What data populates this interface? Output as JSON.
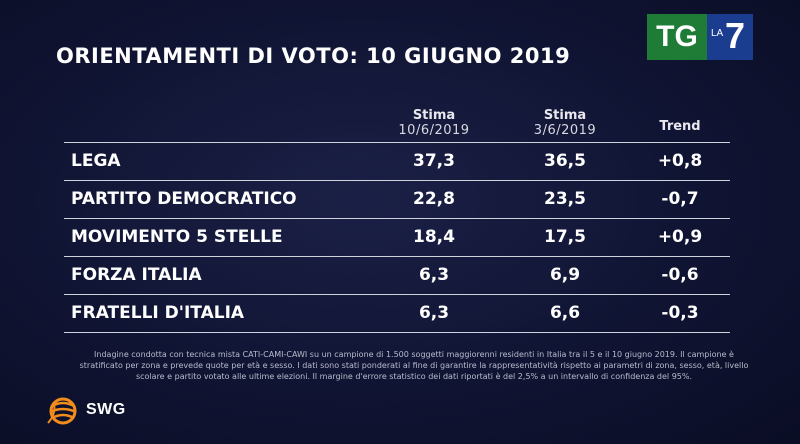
{
  "chart_data": {
    "type": "table",
    "title": "ORIENTAMENTI DI VOTO: 10 GIUGNO 2019",
    "columns": [
      {
        "label": "Stima",
        "sublabel": "10/6/2019"
      },
      {
        "label": "Stima",
        "sublabel": "3/6/2019"
      },
      {
        "label": "Trend",
        "sublabel": ""
      }
    ],
    "rows": [
      {
        "party": "LEGA",
        "stima_10_6": "37,3",
        "stima_3_6": "36,5",
        "trend": "+0,8"
      },
      {
        "party": "PARTITO DEMOCRATICO",
        "stima_10_6": "22,8",
        "stima_3_6": "23,5",
        "trend": "-0,7"
      },
      {
        "party": "MOVIMENTO 5 STELLE",
        "stima_10_6": "18,4",
        "stima_3_6": "17,5",
        "trend": "+0,9"
      },
      {
        "party": "FORZA ITALIA",
        "stima_10_6": "6,3",
        "stima_3_6": "6,9",
        "trend": "-0,6"
      },
      {
        "party": "FRATELLI D'ITALIA",
        "stima_10_6": "6,3",
        "stima_3_6": "6,6",
        "trend": "-0,3"
      }
    ]
  },
  "footnote": "Indagine condotta con tecnica mista CATI-CAMI-CAWI su un campione di 1.500 soggetti maggiorenni residenti in Italia tra il 5 e il 10 giugno 2019. Il campione è stratificato per zona e prevede quote per età e sesso. I dati sono stati ponderati al fine di garantire la rappresentatività rispetto ai parametri di zona, sesso, età, livello scolare e partito votato alle ultime elezioni. Il margine d'errore statistico dei dati riportati è del 2,5% a un intervallo di confidenza del 95%.",
  "logo": {
    "tg": "TG",
    "la": "LA",
    "seven": "7"
  },
  "brand": {
    "name": "SWG",
    "icon": "swg-globe-icon"
  },
  "colors": {
    "background": "#101433",
    "tg_green": "#1f7c36",
    "la7_blue": "#1a3d8f",
    "swg_orange": "#f28c1c"
  }
}
